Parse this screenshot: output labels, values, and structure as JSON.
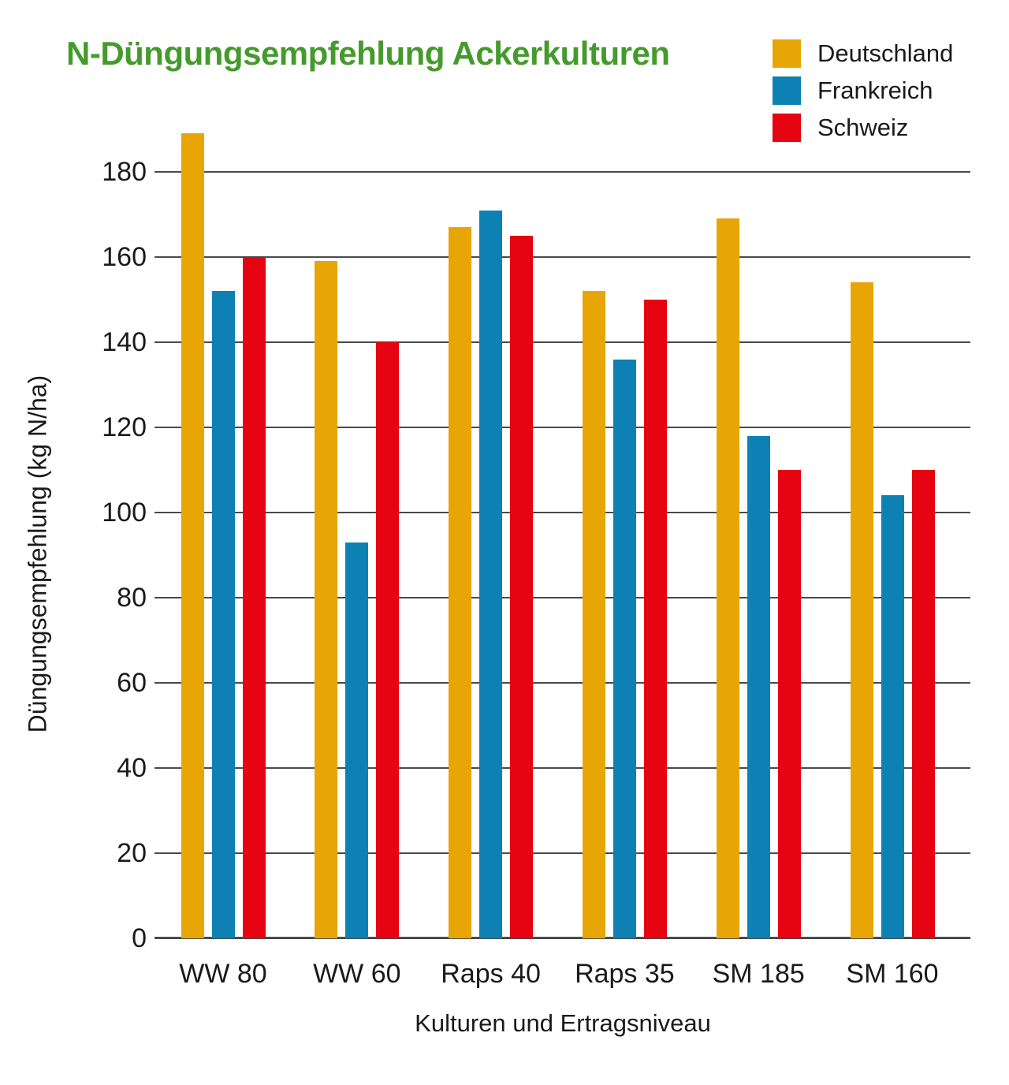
{
  "chart_data": {
    "type": "bar",
    "title": "N-Düngungsempfehlung Ackerkulturen",
    "title_color": "#459A2D",
    "xlabel": "Kulturen und Ertragsniveau",
    "ylabel": "Düngungsempfehlung (kg N/ha)",
    "categories": [
      "WW 80",
      "WW 60",
      "Raps 40",
      "Raps 35",
      "SM 185",
      "SM 160"
    ],
    "series": [
      {
        "name": "Deutschland",
        "color": "#E8A606",
        "values": [
          189,
          159,
          167,
          152,
          169,
          154
        ]
      },
      {
        "name": "Frankreich",
        "color": "#0E81B4",
        "values": [
          152,
          93,
          171,
          136,
          118,
          104
        ]
      },
      {
        "name": "Schweiz",
        "color": "#E60312",
        "values": [
          160,
          140,
          165,
          150,
          110,
          110
        ]
      }
    ],
    "ylim": [
      0,
      190
    ],
    "yticks": [
      0,
      20,
      40,
      60,
      80,
      100,
      120,
      140,
      160,
      180
    ],
    "grid": true,
    "legend_position": "top-right",
    "gridline_color": "#4A4A4A",
    "text_color": "#1A1A1A",
    "unit": "kg N/ha"
  }
}
